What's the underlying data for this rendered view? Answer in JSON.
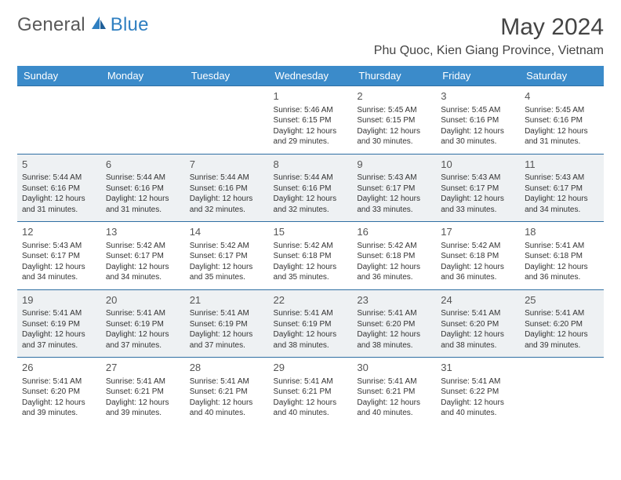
{
  "brand": {
    "part1": "General",
    "part2": "Blue"
  },
  "colors": {
    "header_bg": "#3b8bca",
    "header_text": "#ffffff",
    "row_alt_bg": "#eef1f3",
    "border": "#2f6fa3",
    "title_text": "#444444",
    "body_text": "#333333",
    "logo_gray": "#5a5a5a",
    "logo_blue": "#2f7fc1"
  },
  "title": "May 2024",
  "location": "Phu Quoc, Kien Giang Province, Vietnam",
  "weekdays": [
    "Sunday",
    "Monday",
    "Tuesday",
    "Wednesday",
    "Thursday",
    "Friday",
    "Saturday"
  ],
  "weeks": [
    [
      null,
      null,
      null,
      {
        "n": "1",
        "sr": "5:46 AM",
        "ss": "6:15 PM",
        "dl1": "12 hours",
        "dl2": "and 29 minutes."
      },
      {
        "n": "2",
        "sr": "5:45 AM",
        "ss": "6:15 PM",
        "dl1": "12 hours",
        "dl2": "and 30 minutes."
      },
      {
        "n": "3",
        "sr": "5:45 AM",
        "ss": "6:16 PM",
        "dl1": "12 hours",
        "dl2": "and 30 minutes."
      },
      {
        "n": "4",
        "sr": "5:45 AM",
        "ss": "6:16 PM",
        "dl1": "12 hours",
        "dl2": "and 31 minutes."
      }
    ],
    [
      {
        "n": "5",
        "sr": "5:44 AM",
        "ss": "6:16 PM",
        "dl1": "12 hours",
        "dl2": "and 31 minutes."
      },
      {
        "n": "6",
        "sr": "5:44 AM",
        "ss": "6:16 PM",
        "dl1": "12 hours",
        "dl2": "and 31 minutes."
      },
      {
        "n": "7",
        "sr": "5:44 AM",
        "ss": "6:16 PM",
        "dl1": "12 hours",
        "dl2": "and 32 minutes."
      },
      {
        "n": "8",
        "sr": "5:44 AM",
        "ss": "6:16 PM",
        "dl1": "12 hours",
        "dl2": "and 32 minutes."
      },
      {
        "n": "9",
        "sr": "5:43 AM",
        "ss": "6:17 PM",
        "dl1": "12 hours",
        "dl2": "and 33 minutes."
      },
      {
        "n": "10",
        "sr": "5:43 AM",
        "ss": "6:17 PM",
        "dl1": "12 hours",
        "dl2": "and 33 minutes."
      },
      {
        "n": "11",
        "sr": "5:43 AM",
        "ss": "6:17 PM",
        "dl1": "12 hours",
        "dl2": "and 34 minutes."
      }
    ],
    [
      {
        "n": "12",
        "sr": "5:43 AM",
        "ss": "6:17 PM",
        "dl1": "12 hours",
        "dl2": "and 34 minutes."
      },
      {
        "n": "13",
        "sr": "5:42 AM",
        "ss": "6:17 PM",
        "dl1": "12 hours",
        "dl2": "and 34 minutes."
      },
      {
        "n": "14",
        "sr": "5:42 AM",
        "ss": "6:17 PM",
        "dl1": "12 hours",
        "dl2": "and 35 minutes."
      },
      {
        "n": "15",
        "sr": "5:42 AM",
        "ss": "6:18 PM",
        "dl1": "12 hours",
        "dl2": "and 35 minutes."
      },
      {
        "n": "16",
        "sr": "5:42 AM",
        "ss": "6:18 PM",
        "dl1": "12 hours",
        "dl2": "and 36 minutes."
      },
      {
        "n": "17",
        "sr": "5:42 AM",
        "ss": "6:18 PM",
        "dl1": "12 hours",
        "dl2": "and 36 minutes."
      },
      {
        "n": "18",
        "sr": "5:41 AM",
        "ss": "6:18 PM",
        "dl1": "12 hours",
        "dl2": "and 36 minutes."
      }
    ],
    [
      {
        "n": "19",
        "sr": "5:41 AM",
        "ss": "6:19 PM",
        "dl1": "12 hours",
        "dl2": "and 37 minutes."
      },
      {
        "n": "20",
        "sr": "5:41 AM",
        "ss": "6:19 PM",
        "dl1": "12 hours",
        "dl2": "and 37 minutes."
      },
      {
        "n": "21",
        "sr": "5:41 AM",
        "ss": "6:19 PM",
        "dl1": "12 hours",
        "dl2": "and 37 minutes."
      },
      {
        "n": "22",
        "sr": "5:41 AM",
        "ss": "6:19 PM",
        "dl1": "12 hours",
        "dl2": "and 38 minutes."
      },
      {
        "n": "23",
        "sr": "5:41 AM",
        "ss": "6:20 PM",
        "dl1": "12 hours",
        "dl2": "and 38 minutes."
      },
      {
        "n": "24",
        "sr": "5:41 AM",
        "ss": "6:20 PM",
        "dl1": "12 hours",
        "dl2": "and 38 minutes."
      },
      {
        "n": "25",
        "sr": "5:41 AM",
        "ss": "6:20 PM",
        "dl1": "12 hours",
        "dl2": "and 39 minutes."
      }
    ],
    [
      {
        "n": "26",
        "sr": "5:41 AM",
        "ss": "6:20 PM",
        "dl1": "12 hours",
        "dl2": "and 39 minutes."
      },
      {
        "n": "27",
        "sr": "5:41 AM",
        "ss": "6:21 PM",
        "dl1": "12 hours",
        "dl2": "and 39 minutes."
      },
      {
        "n": "28",
        "sr": "5:41 AM",
        "ss": "6:21 PM",
        "dl1": "12 hours",
        "dl2": "and 40 minutes."
      },
      {
        "n": "29",
        "sr": "5:41 AM",
        "ss": "6:21 PM",
        "dl1": "12 hours",
        "dl2": "and 40 minutes."
      },
      {
        "n": "30",
        "sr": "5:41 AM",
        "ss": "6:21 PM",
        "dl1": "12 hours",
        "dl2": "and 40 minutes."
      },
      {
        "n": "31",
        "sr": "5:41 AM",
        "ss": "6:22 PM",
        "dl1": "12 hours",
        "dl2": "and 40 minutes."
      },
      null
    ]
  ],
  "labels": {
    "sunrise": "Sunrise:",
    "sunset": "Sunset:",
    "daylight": "Daylight:"
  }
}
